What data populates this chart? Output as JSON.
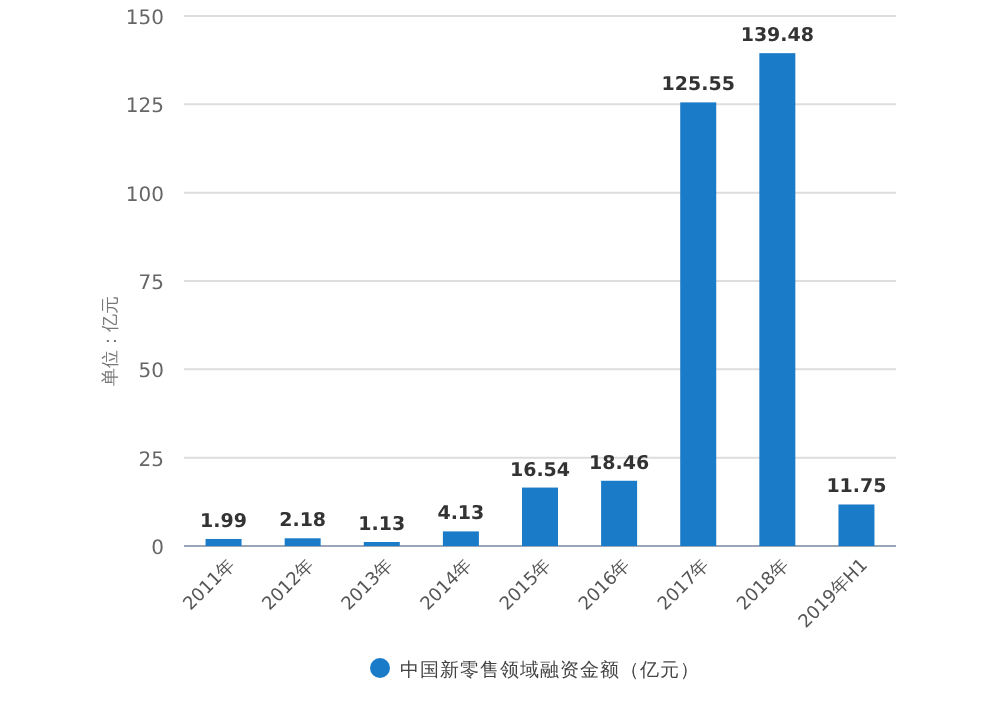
{
  "chart_data": {
    "type": "bar",
    "ylabel": "单位：亿元",
    "categories": [
      "2011年",
      "2012年",
      "2013年",
      "2014年",
      "2015年",
      "2016年",
      "2017年",
      "2018年",
      "2019年H1"
    ],
    "series": [
      {
        "name": "中国新零售领域融资金额（亿元）",
        "color": "#1a7bc9",
        "values": [
          1.99,
          2.18,
          1.13,
          4.13,
          16.54,
          18.46,
          125.55,
          139.48,
          11.75
        ]
      }
    ],
    "ylim": [
      0,
      150
    ],
    "yticks": [
      0,
      25,
      50,
      75,
      100,
      125,
      150
    ],
    "grid": "y",
    "legend": "bottom",
    "data_labels": true
  }
}
